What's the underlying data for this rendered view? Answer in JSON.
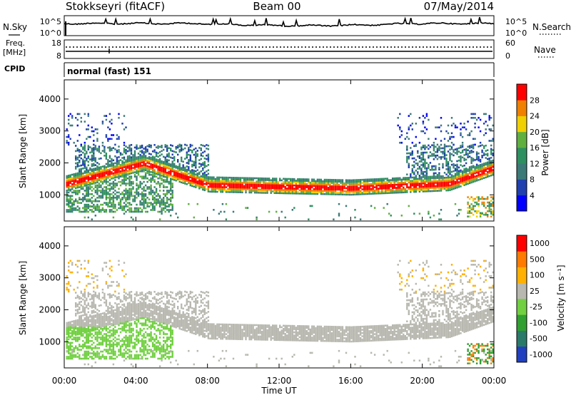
{
  "header": {
    "station": "Stokkseyri (fitACF)",
    "beam": "Beam 00",
    "date": "07/May/2014"
  },
  "nsky_panel": {
    "left_label": "N.Sky",
    "right_label": "N.Search",
    "y_ticks_left": [
      "10^5",
      "10^0"
    ],
    "y_ticks_right": [
      "10^5",
      "10^0"
    ]
  },
  "freq_panel": {
    "left_label_line1": "Freq.",
    "left_label_line2": "[MHz]",
    "right_label": "Nave",
    "y_ticks_left": [
      "18",
      "8"
    ],
    "y_ticks_right": [
      "60",
      "0"
    ]
  },
  "cpid_panel": {
    "label": "CPID",
    "text": "normal (fast) 151"
  },
  "time_axis": {
    "label": "Time UT",
    "ticks": [
      "00:00",
      "04:00",
      "08:00",
      "12:00",
      "16:00",
      "20:00",
      "00:00"
    ]
  },
  "colors": {
    "power_scale": [
      "#0000ff",
      "#2040b0",
      "#3c7a78",
      "#2e9060",
      "#60b040",
      "#f0d000",
      "#f08000",
      "#ff0000"
    ],
    "velocity_scale": [
      "#2040c0",
      "#2a7a6a",
      "#30a030",
      "#70d040",
      "#b8b8b0",
      "#ffb000",
      "#ff7a00",
      "#ff0000"
    ]
  },
  "chart_data": [
    {
      "type": "heatmap",
      "ylabel": "Slant Range [km]",
      "ylim": [
        180,
        4600
      ],
      "y_ticks": [
        1000,
        2000,
        3000,
        4000
      ],
      "colorbar_label": "Power [dB]",
      "colorbar_ticks": [
        "4",
        "8",
        "12",
        "16",
        "20",
        "24",
        "28"
      ],
      "grid": false
    },
    {
      "type": "heatmap",
      "ylabel": "Slant Range [km]",
      "ylim": [
        180,
        4600
      ],
      "y_ticks": [
        1000,
        2000,
        3000,
        4000
      ],
      "colorbar_label": "Velocity [m s⁻¹]",
      "colorbar_ticks": [
        "1000",
        "500",
        "100",
        "25",
        "-25",
        "-100",
        "-500",
        "-1000"
      ],
      "grid": false
    }
  ]
}
